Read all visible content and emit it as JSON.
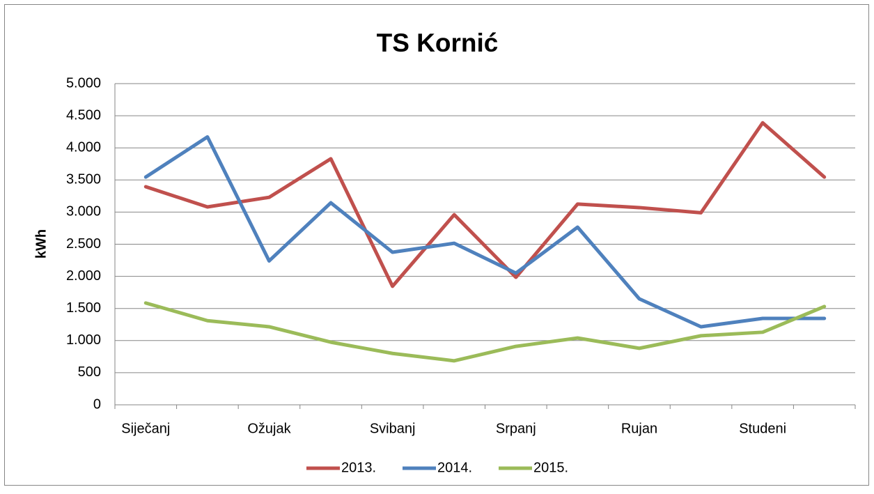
{
  "chart_data": {
    "type": "line",
    "title": "TS Kornić",
    "y_label": "kWh",
    "categories": [
      "Siječanj",
      null,
      "Ožujak",
      null,
      "Svibanj",
      null,
      "Srpanj",
      null,
      "Rujan",
      null,
      "Studeni",
      null
    ],
    "series": [
      {
        "name": "2013.",
        "color": "#c0504d",
        "values": [
          3395,
          3080,
          3230,
          3830,
          1845,
          2960,
          1985,
          3125,
          3070,
          2990,
          4390,
          3545
        ]
      },
      {
        "name": "2014.",
        "color": "#4f81bd",
        "values": [
          3545,
          4170,
          2240,
          3145,
          2375,
          2515,
          2050,
          2765,
          1650,
          1215,
          1345,
          1345
        ]
      },
      {
        "name": "2015.",
        "color": "#9bbb59",
        "values": [
          1585,
          1310,
          1215,
          975,
          800,
          685,
          910,
          1040,
          880,
          1075,
          1130,
          1530
        ]
      }
    ],
    "ylim": [
      0,
      5000
    ],
    "yticks": [
      0,
      500,
      {
        "value": 1000,
        "label": "1.000"
      },
      {
        "value": 1500,
        "label": "1.500"
      },
      {
        "value": 2000,
        "label": "2.000"
      },
      {
        "value": 2500,
        "label": "2.500"
      },
      {
        "value": 3000,
        "label": "3.000"
      },
      {
        "value": 3500,
        "label": "3.500"
      },
      {
        "value": 4000,
        "label": "4.000"
      },
      {
        "value": 4500,
        "label": "4.500"
      },
      {
        "value": 5000,
        "label": "5.000"
      }
    ],
    "grid": true,
    "legend": "bottom"
  }
}
